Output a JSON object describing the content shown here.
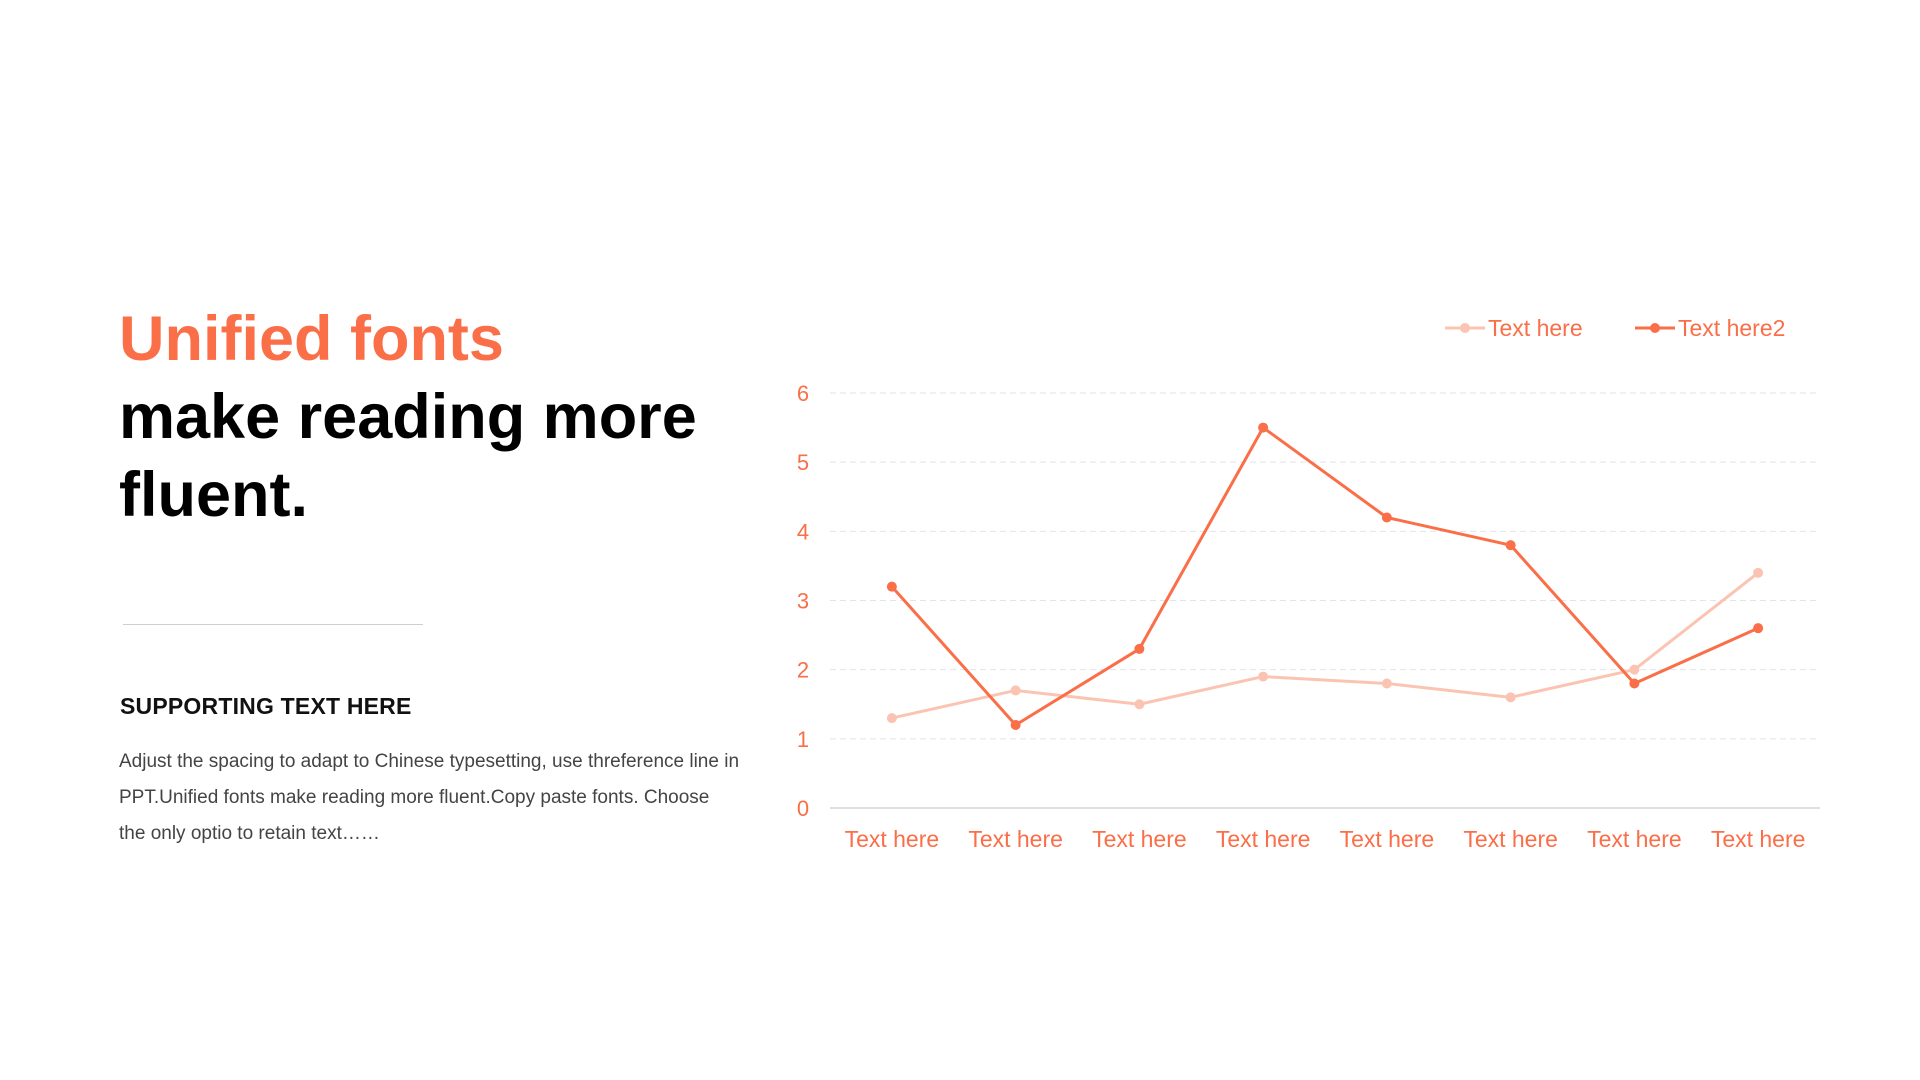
{
  "heading": {
    "accent": "Unified fonts",
    "line1": "make reading more",
    "line2": "fluent."
  },
  "supporting": {
    "title": "SUPPORTING TEXT HERE",
    "body": "Adjust the spacing to adapt to Chinese typesetting, use threference line in PPT.Unified fonts make reading more fluent.Copy paste fonts. Choose the only optio to retain text……"
  },
  "colors": {
    "accent": "#fa6e48",
    "series1": "#fbc4b2",
    "series2": "#fa6e48",
    "grid": "#e3e3ea",
    "axis": "#d6d6d6"
  },
  "chart_data": {
    "type": "line",
    "categories": [
      "Text here",
      "Text here",
      "Text here",
      "Text here",
      "Text here",
      "Text here",
      "Text here",
      "Text here"
    ],
    "series": [
      {
        "name": "Text here",
        "values": [
          1.3,
          1.7,
          1.5,
          1.9,
          1.8,
          1.6,
          2.0,
          3.4
        ]
      },
      {
        "name": "Text here2",
        "values": [
          3.2,
          1.2,
          2.3,
          5.5,
          4.2,
          3.8,
          1.8,
          2.6
        ]
      }
    ],
    "yticks": [
      0,
      1,
      2,
      3,
      4,
      5,
      6
    ],
    "ylim": [
      0,
      6
    ],
    "grid": true,
    "legend": "top-right"
  }
}
